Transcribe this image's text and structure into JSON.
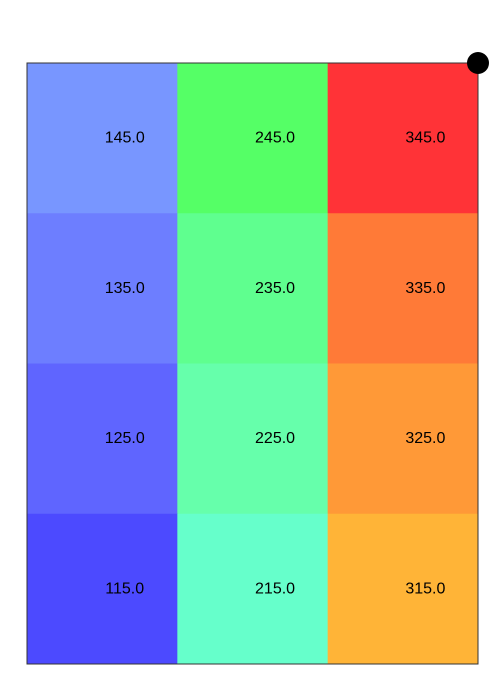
{
  "chart_data": {
    "type": "heatmap",
    "title": "",
    "xlabel": "",
    "ylabel": "",
    "columns": 3,
    "rows": 4,
    "values": [
      [
        145.0,
        245.0,
        345.0
      ],
      [
        135.0,
        235.0,
        335.0
      ],
      [
        125.0,
        225.0,
        325.0
      ],
      [
        115.0,
        215.0,
        315.0
      ]
    ],
    "labels": [
      [
        "145.0",
        "245.0",
        "345.0"
      ],
      [
        "135.0",
        "235.0",
        "335.0"
      ],
      [
        "125.0",
        "225.0",
        "325.0"
      ],
      [
        "115.0",
        "215.0",
        "315.0"
      ]
    ],
    "colors": [
      [
        "#7896FF",
        "#55FF66",
        "#FF3337"
      ],
      [
        "#6D7EFF",
        "#5FFF8F",
        "#FF7A37"
      ],
      [
        "#5F65FF",
        "#66FFAB",
        "#FF9937"
      ],
      [
        "#4C4AFF",
        "#66FFCB",
        "#FFB437"
      ]
    ],
    "grid": false,
    "legend": "none",
    "marker_color": "#000000"
  }
}
